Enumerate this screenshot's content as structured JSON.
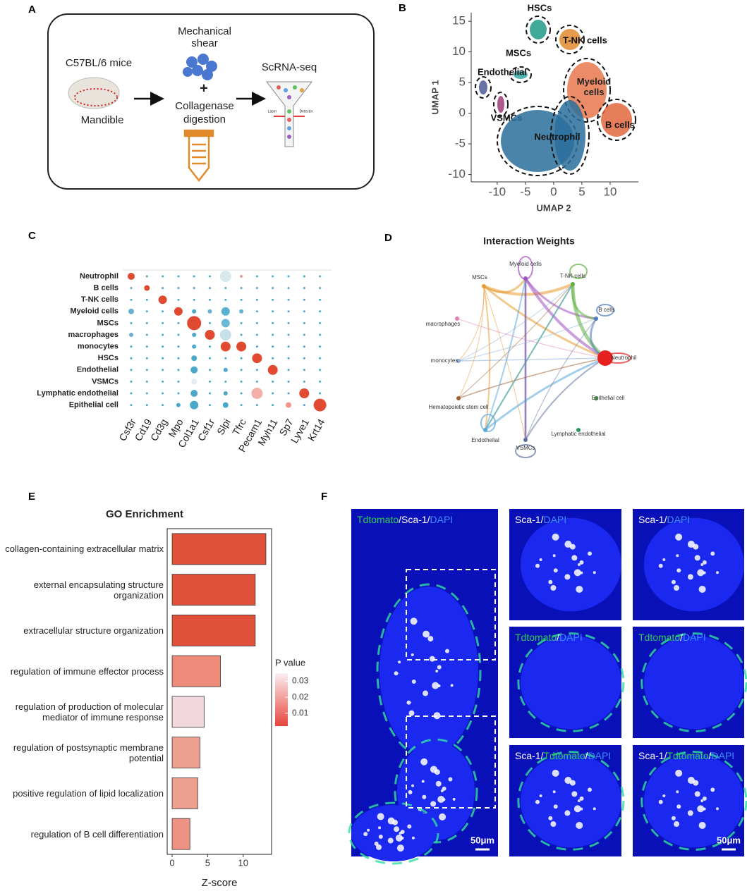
{
  "panel_labels": [
    "A",
    "B",
    "C",
    "D",
    "E",
    "F"
  ],
  "panel_a": {
    "mouse": "C57BL/6 mice",
    "bone": "Mandible",
    "shear": [
      "Mechanical",
      "shear"
    ],
    "plus": "+",
    "digestion": [
      "Collagenase",
      "digestion"
    ],
    "output": "ScRNA-seq",
    "laser": "Laser",
    "detector": "Detector"
  },
  "chart_data": [
    {
      "type": "scatter",
      "xlabel": "UMAP 2",
      "ylabel": "UMAP 1",
      "xlim": [
        -14.6,
        15
      ],
      "ylim": [
        -11.2,
        16.4
      ],
      "xticks": [
        -10,
        -5,
        0,
        5,
        10
      ],
      "yticks": [
        15,
        10,
        5,
        0,
        -5,
        -10
      ],
      "clusters": [
        {
          "name": "HSCs",
          "color": "#1f9a86"
        },
        {
          "name": "T-NK cells",
          "color": "#e0892e"
        },
        {
          "name": "MSCs",
          "color": "#36a9a6"
        },
        {
          "name": "Endothelial",
          "color": "#4c5a98"
        },
        {
          "name": "Myeloid cells",
          "color": "#e8774c"
        },
        {
          "name": "B cells",
          "color": "#e2673f"
        },
        {
          "name": "VSMCs",
          "color": "#a03c78"
        },
        {
          "name": "Neutrophil",
          "color": "#2a6f9c"
        }
      ]
    },
    {
      "type": "dot",
      "rows": [
        "Neutrophil",
        "B cells",
        "T-NK cells",
        "Myeloid cells",
        "MSCs",
        "macrophages",
        "monocytes",
        "HSCs",
        "Endothelial",
        "VSMCs",
        "Lymphatic endothelial",
        "Epithelial cell"
      ],
      "columns": [
        "Csf3r",
        "Cd19",
        "Cd3g",
        "Mpo",
        "Col1a1",
        "Csf1r",
        "Slpi",
        "Tfrc",
        "Pecam1",
        "Myh11",
        "Sp7",
        "Lyve1",
        "Krt14"
      ]
    },
    {
      "type": "network",
      "title": "Interaction Weights",
      "nodes": [
        {
          "name": "Myeloid cells",
          "color": "#a050c0"
        },
        {
          "name": "T-NK cells",
          "color": "#5fb040"
        },
        {
          "name": "MSCs",
          "color": "#e89a30"
        },
        {
          "name": "B cells",
          "color": "#4a7ac0"
        },
        {
          "name": "macrophages",
          "color": "#e080b0"
        },
        {
          "name": "Neutrophil",
          "color": "#e82020"
        },
        {
          "name": "monocytes",
          "color": "#8fb0d8"
        },
        {
          "name": "Epithelial cell",
          "color": "#50b060"
        },
        {
          "name": "Hematopoietic stem cell",
          "color": "#a06030"
        },
        {
          "name": "Lymphatic endothelial",
          "color": "#2a9a60"
        },
        {
          "name": "Endothelial",
          "color": "#5aa8d8"
        },
        {
          "name": "VSMCs",
          "color": "#6070a0"
        }
      ]
    },
    {
      "type": "bar",
      "orientation": "horizontal",
      "title": "GO Enrichment",
      "xlabel": "Z-score",
      "categories": [
        "collagen-containing extracellular matrix",
        "external encapsulating structure organization",
        "extracellular structure organization",
        "regulation of immune effector process",
        "regulation of production of molecular mediator of immune response",
        "regulation of postsynaptic membrane potential",
        "positive regulation of lipid localization",
        "regulation of B cell differentiation"
      ],
      "values": [
        13.2,
        11.7,
        11.7,
        6.8,
        4.5,
        3.9,
        3.6,
        2.5
      ],
      "colors": [
        "#e0503a",
        "#e0503a",
        "#e0503a",
        "#ee8a7a",
        "#f2d8dc",
        "#eea090",
        "#eea090",
        "#ee9282"
      ],
      "xlim": [
        -0.7,
        14
      ],
      "xticks": [
        0,
        5,
        10
      ],
      "legend_title": "P value",
      "legend_ticks": [
        0.03,
        0.02,
        0.01
      ],
      "legend_lim": [
        0.002,
        0.035
      ],
      "legend_colors": [
        "#e8453a",
        "#fbeef2"
      ]
    }
  ],
  "panel_f": {
    "images": [
      {
        "label": [
          {
            "text": "Tdtomato",
            "color": "#2ecc55"
          },
          {
            "text": "/Sca-1/",
            "color": "#ffffff"
          },
          {
            "text": "DAPI",
            "color": "#3a8cff"
          }
        ],
        "scale_bar": "50μm"
      },
      {
        "label": [
          {
            "text": "Sca-1/",
            "color": "#ffffff"
          },
          {
            "text": "DAPI",
            "color": "#3a8cff"
          }
        ]
      },
      {
        "label": [
          {
            "text": "Sca-1/",
            "color": "#ffffff"
          },
          {
            "text": "DAPI",
            "color": "#3a8cff"
          }
        ]
      },
      {
        "label": [
          {
            "text": "Tdtomato",
            "color": "#2ecc55"
          },
          {
            "text": "/",
            "color": "#ffffff"
          },
          {
            "text": "DAPI",
            "color": "#3a8cff"
          }
        ]
      },
      {
        "label": [
          {
            "text": "Tdtomato",
            "color": "#2ecc55"
          },
          {
            "text": "/",
            "color": "#ffffff"
          },
          {
            "text": "DAPI",
            "color": "#3a8cff"
          }
        ]
      },
      {
        "label": [
          {
            "text": "Sca-1/",
            "color": "#ffffff"
          },
          {
            "text": "Tdtomato",
            "color": "#2ecc55"
          },
          {
            "text": "/",
            "color": "#ffffff"
          },
          {
            "text": "DAPI",
            "color": "#3a8cff"
          }
        ]
      },
      {
        "label": [
          {
            "text": "Sca-1/",
            "color": "#ffffff"
          },
          {
            "text": "Tdtomato",
            "color": "#2ecc55"
          },
          {
            "text": "/",
            "color": "#ffffff"
          },
          {
            "text": "DAPI",
            "color": "#3a8cff"
          }
        ],
        "scale_bar": "50μm"
      }
    ]
  }
}
